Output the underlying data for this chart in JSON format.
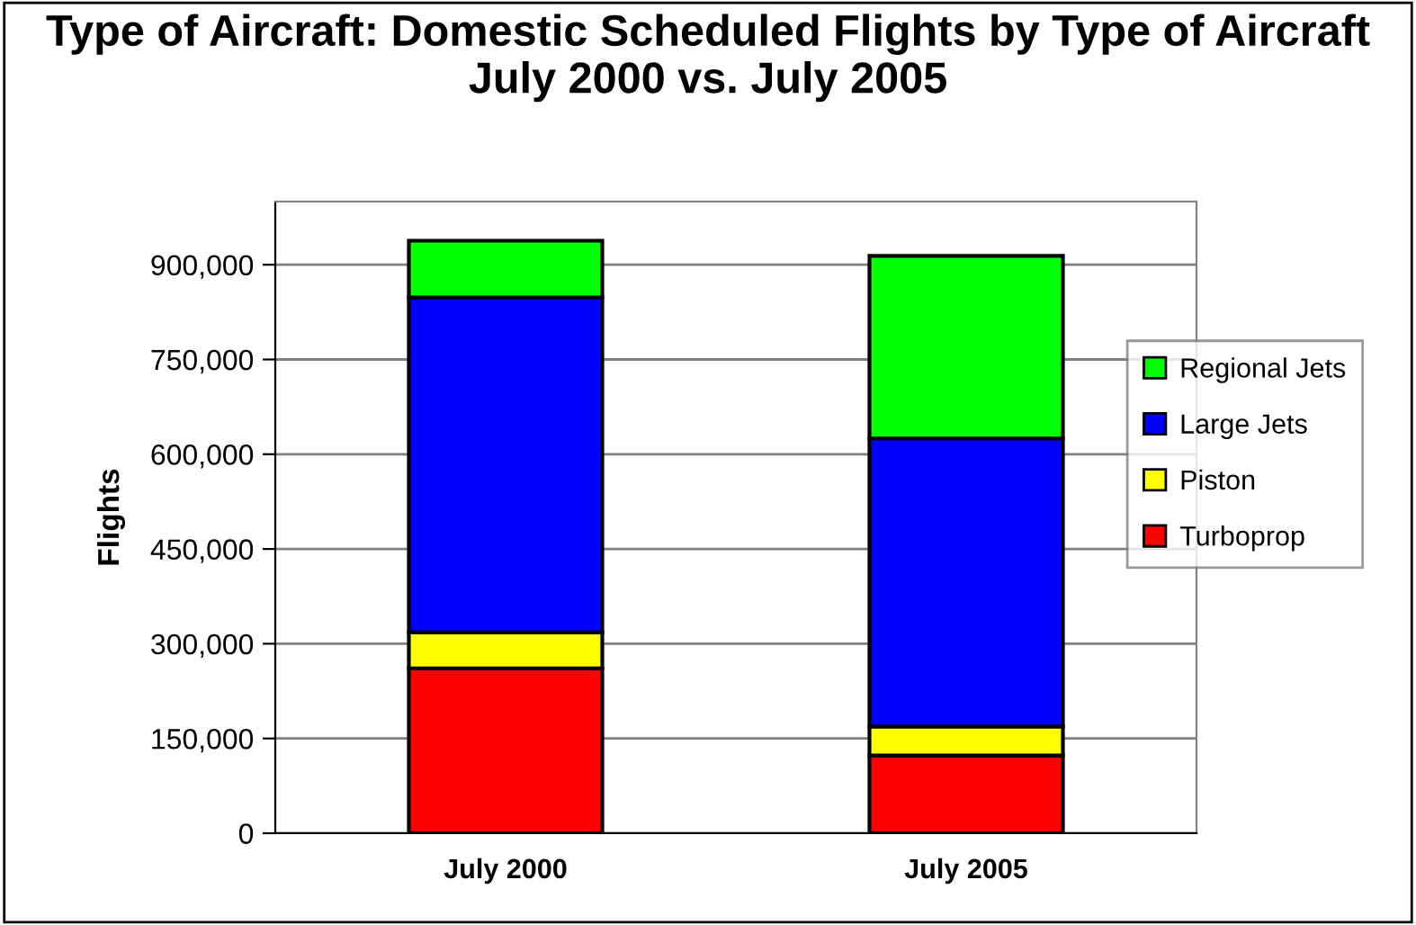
{
  "chart_data": {
    "type": "bar",
    "title": "Type of Aircraft: Domestic Scheduled Flights by Type of Aircraft July 2000 vs. July 2005",
    "ylabel": "Flights",
    "categories": [
      "July 2000",
      "July 2005"
    ],
    "stacked": true,
    "series": [
      {
        "name": "Turboprop",
        "color": "#ff0000",
        "values": [
          261000,
          123000
        ]
      },
      {
        "name": "Piston",
        "color": "#ffff00",
        "values": [
          57000,
          46000
        ]
      },
      {
        "name": "Large Jets",
        "color": "#0000ff",
        "values": [
          530000,
          456000
        ]
      },
      {
        "name": "Regional Jets",
        "color": "#00ff00",
        "values": [
          90000,
          289000
        ]
      }
    ],
    "ylim": [
      0,
      1000000
    ],
    "yticks": [
      {
        "value": 0,
        "label": "0"
      },
      {
        "value": 150000,
        "label": "150,000"
      },
      {
        "value": 300000,
        "label": "300,000"
      },
      {
        "value": 450000,
        "label": "450,000"
      },
      {
        "value": 600000,
        "label": "600,000"
      },
      {
        "value": 750000,
        "label": "750,000"
      },
      {
        "value": 900000,
        "label": "900,000"
      }
    ],
    "grid": "y",
    "legend": "right"
  }
}
